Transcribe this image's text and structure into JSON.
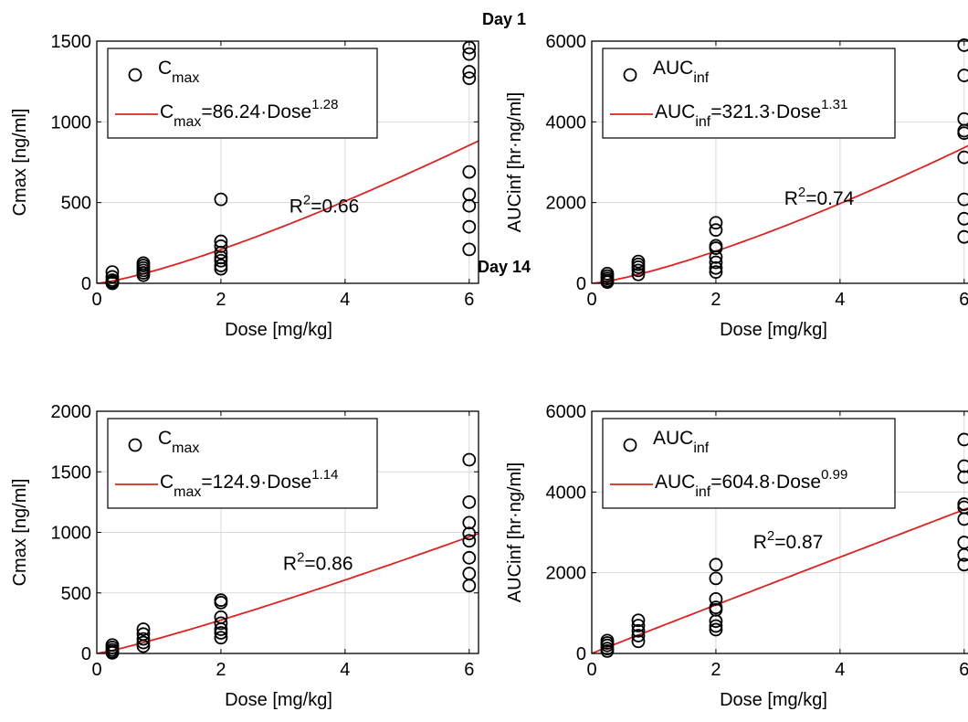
{
  "figure": {
    "section_titles": [
      "Day 1",
      "Day 14"
    ],
    "fit_color": "#dd2222",
    "marker_color": "#000000",
    "grid_color": "#d9d9d9"
  },
  "chart_data": [
    {
      "type": "scatter",
      "day": "Day 1",
      "xlabel": "Dose [mg/kg]",
      "ylabel": "Cmax [ng/ml]",
      "xlim": [
        0,
        6.15
      ],
      "ylim": [
        0,
        1500
      ],
      "xticks": [
        0,
        2,
        4,
        6
      ],
      "yticks": [
        0,
        500,
        1000,
        1500
      ],
      "grid": true,
      "legend_position": "top-left",
      "legend": {
        "marker_base": "C",
        "marker_sub": "max",
        "fit_base": "C",
        "fit_sub": "max",
        "fit_eq": "=86.24·Dose",
        "fit_exp": "1.28"
      },
      "annotation": {
        "base": "R",
        "sup": "2",
        "rest": "=0.66",
        "x": 3.1,
        "y": 440
      },
      "fit": {
        "a": 86.24,
        "b": 1.28
      },
      "series": [
        {
          "x": 0.25,
          "values": [
            70,
            40,
            20,
            10,
            5,
            0
          ]
        },
        {
          "x": 0.75,
          "values": [
            125,
            110,
            95,
            80,
            65,
            50
          ]
        },
        {
          "x": 2,
          "values": [
            520,
            260,
            230,
            190,
            160,
            140,
            110,
            90
          ]
        },
        {
          "x": 6,
          "values": [
            1460,
            1420,
            1310,
            1270,
            690,
            550,
            480,
            350,
            210
          ]
        }
      ]
    },
    {
      "type": "scatter",
      "day": "Day 1",
      "xlabel": "Dose [mg/kg]",
      "ylabel": "AUCinf [hr·ng/ml]",
      "xlim": [
        0,
        6.15
      ],
      "ylim": [
        0,
        6000
      ],
      "xticks": [
        0,
        2,
        4,
        6
      ],
      "yticks": [
        0,
        2000,
        4000,
        6000
      ],
      "grid": true,
      "legend_position": "top-left",
      "legend": {
        "marker_base": "AUC",
        "marker_sub": "inf",
        "fit_base": "AUC",
        "fit_sub": "inf",
        "fit_eq": "=321.3·Dose",
        "fit_exp": "1.31"
      },
      "annotation": {
        "base": "R",
        "sup": "2",
        "rest": "=0.74",
        "x": 3.1,
        "y": 1950
      },
      "fit": {
        "a": 321.3,
        "b": 1.31
      },
      "series": [
        {
          "x": 0.25,
          "values": [
            240,
            180,
            120,
            70,
            30
          ]
        },
        {
          "x": 0.75,
          "values": [
            540,
            470,
            400,
            320,
            220
          ]
        },
        {
          "x": 2,
          "values": [
            1500,
            1320,
            930,
            870,
            650,
            520,
            380,
            280
          ]
        },
        {
          "x": 6,
          "values": [
            5900,
            5150,
            4070,
            3780,
            3720,
            3120,
            2080,
            1600,
            1150
          ]
        }
      ]
    },
    {
      "type": "scatter",
      "day": "Day 14",
      "xlabel": "Dose [mg/kg]",
      "ylabel": "Cmax [ng/ml]",
      "xlim": [
        0,
        6.15
      ],
      "ylim": [
        0,
        2000
      ],
      "xticks": [
        0,
        2,
        4,
        6
      ],
      "yticks": [
        0,
        500,
        1000,
        1500,
        2000
      ],
      "grid": true,
      "legend_position": "top-left",
      "legend": {
        "marker_base": "C",
        "marker_sub": "max",
        "fit_base": "C",
        "fit_sub": "max",
        "fit_eq": "=124.9·Dose",
        "fit_exp": "1.14"
      },
      "annotation": {
        "base": "R",
        "sup": "2",
        "rest": "=0.86",
        "x": 3.0,
        "y": 690
      },
      "fit": {
        "a": 124.9,
        "b": 1.14
      },
      "series": [
        {
          "x": 0.25,
          "values": [
            70,
            50,
            30,
            15,
            5
          ]
        },
        {
          "x": 0.75,
          "values": [
            200,
            160,
            120,
            90,
            60
          ]
        },
        {
          "x": 2,
          "values": [
            440,
            420,
            300,
            250,
            200,
            170,
            130
          ]
        },
        {
          "x": 6,
          "values": [
            1600,
            1250,
            1080,
            990,
            930,
            790,
            660,
            560
          ]
        }
      ]
    },
    {
      "type": "scatter",
      "day": "Day 14",
      "xlabel": "Dose [mg/kg]",
      "ylabel": "AUCinf [hr·ng/ml]",
      "xlim": [
        0,
        6.15
      ],
      "ylim": [
        0,
        6000
      ],
      "xticks": [
        0,
        2,
        4,
        6
      ],
      "yticks": [
        0,
        2000,
        4000,
        6000
      ],
      "grid": true,
      "legend_position": "top-left",
      "legend": {
        "marker_base": "AUC",
        "marker_sub": "inf",
        "fit_base": "AUC",
        "fit_sub": "inf",
        "fit_eq": "=604.8·Dose",
        "fit_exp": "0.99"
      },
      "annotation": {
        "base": "R",
        "sup": "2",
        "rest": "=0.87",
        "x": 2.6,
        "y": 2600
      },
      "fit": {
        "a": 604.8,
        "b": 0.99
      },
      "series": [
        {
          "x": 0.25,
          "values": [
            320,
            260,
            200,
            120,
            60
          ]
        },
        {
          "x": 0.75,
          "values": [
            820,
            690,
            560,
            440,
            300
          ]
        },
        {
          "x": 2,
          "values": [
            2200,
            1860,
            1350,
            1140,
            1080,
            800,
            680,
            590
          ]
        },
        {
          "x": 6,
          "values": [
            5300,
            4640,
            4370,
            3700,
            3620,
            3330,
            2750,
            2440,
            2200
          ]
        }
      ]
    }
  ]
}
